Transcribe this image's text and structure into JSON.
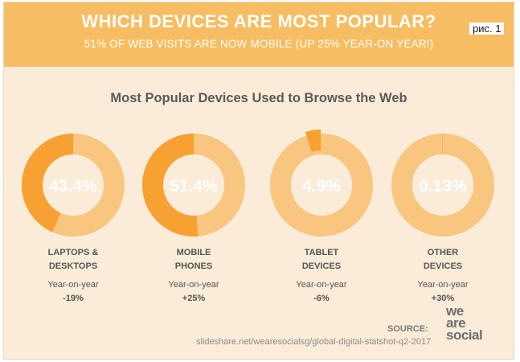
{
  "header": {
    "title": "WHICH DEVICES ARE MOST POPULAR?",
    "subtitle": "51% OF WEB VISITS ARE NOW MOBILE (UP 25% YEAR-ON YEAR!)",
    "caption": "рис. 1"
  },
  "colors": {
    "accent": "#f6a131",
    "ring": "#f9c680",
    "header": "#f7bd62",
    "background": "#faecd9"
  },
  "chart_data": {
    "type": "pie",
    "title": "Most Popular Devices Used to Browse the Web",
    "categories": [
      "LAPTOPS & DESKTOPS",
      "MOBILE PHONES",
      "TABLET DEVICES",
      "OTHER DEVICES"
    ],
    "values": [
      43.4,
      51.4,
      4.9,
      0.13
    ],
    "value_labels": [
      "43.4%",
      "51.4%",
      "4.9%",
      "0.13%"
    ],
    "name_lines": [
      [
        "LAPTOPS &",
        "DESKTOPS"
      ],
      [
        "MOBILE",
        "PHONES"
      ],
      [
        "TABLET",
        "DEVICES"
      ],
      [
        "OTHER",
        "DEVICES"
      ]
    ],
    "yoy_label": "Year-on-year",
    "yoy_changes": [
      "-19%",
      "+25%",
      "-6%",
      "+30%"
    ]
  },
  "footer": {
    "source_label": "SOURCE:",
    "url": "slideshare.net/wearesocialsg/global-digital-statshot-q2-2017",
    "logo_lines": [
      "we",
      "are",
      "social"
    ]
  }
}
